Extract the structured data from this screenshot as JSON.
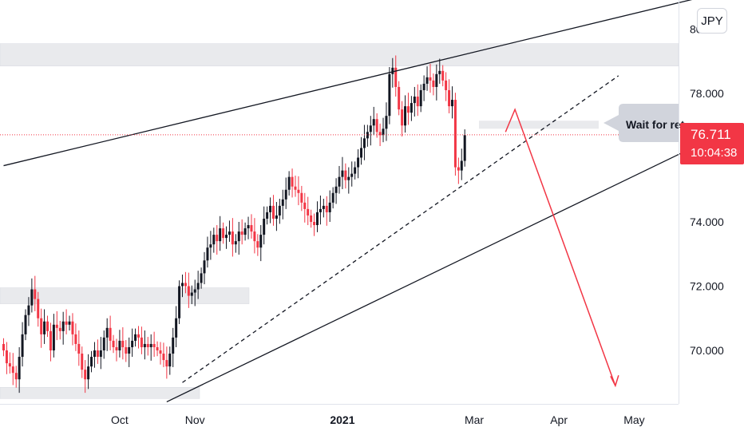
{
  "header": {
    "currency": "JPY"
  },
  "price_tag": {
    "price": "76.711",
    "countdown": "10:04:38"
  },
  "annotation": {
    "text": "Wait for ret"
  },
  "colors": {
    "up": "#131722",
    "down": "#f23645",
    "zone": "#e9eaed",
    "arrow": "#f23645",
    "grid": "#ffffff"
  },
  "chart_data": {
    "type": "candlestick",
    "symbol_currency": "JPY",
    "yaxis": {
      "ticks": [
        "80.000",
        "78.000",
        "76.000",
        "74.000",
        "72.000",
        "70.000"
      ],
      "tick_values": [
        80,
        78,
        76,
        74,
        72,
        70
      ],
      "range": [
        68.4,
        80.5
      ]
    },
    "xaxis": {
      "labels": [
        {
          "text": "Oct",
          "index": 37
        },
        {
          "text": "Nov",
          "index": 61
        },
        {
          "text": "2021",
          "index": 108
        },
        {
          "text": "Mar",
          "index": 150
        },
        {
          "text": "Apr",
          "index": 177
        },
        {
          "text": "May",
          "index": 201
        }
      ]
    },
    "last_price": 76.711,
    "candles_close": [
      70.0,
      69.6,
      69.5,
      69.3,
      69.1,
      69.8,
      70.5,
      71.1,
      71.4,
      71.9,
      71.6,
      71.0,
      70.5,
      70.9,
      70.6,
      70.0,
      70.8,
      70.7,
      70.6,
      70.9,
      70.8,
      70.9,
      70.5,
      70.2,
      69.9,
      69.4,
      69.1,
      69.5,
      69.8,
      70.0,
      69.8,
      70.0,
      70.4,
      70.7,
      70.3,
      70.1,
      70.0,
      70.3,
      70.1,
      69.9,
      70.1,
      70.3,
      70.5,
      70.4,
      70.1,
      70.2,
      70.1,
      70.2,
      70.1,
      70.0,
      69.9,
      69.7,
      69.5,
      69.9,
      70.4,
      71.0,
      72.0,
      72.1,
      72.0,
      71.7,
      71.8,
      71.9,
      72.1,
      72.4,
      72.8,
      73.2,
      73.3,
      73.6,
      73.4,
      73.8,
      73.5,
      73.6,
      73.7,
      73.3,
      73.4,
      73.7,
      73.6,
      73.8,
      73.9,
      73.7,
      73.4,
      73.2,
      73.6,
      74.1,
      74.3,
      74.5,
      74.1,
      74.2,
      74.5,
      74.7,
      75.0,
      75.4,
      75.1,
      75.0,
      74.9,
      74.6,
      74.4,
      74.2,
      74.0,
      73.9,
      74.3,
      74.4,
      74.5,
      74.3,
      74.6,
      74.9,
      75.1,
      75.4,
      75.6,
      75.3,
      75.4,
      75.5,
      75.7,
      76.0,
      76.3,
      76.6,
      76.8,
      77.0,
      77.2,
      76.8,
      76.7,
      76.9,
      77.3,
      78.6,
      78.8,
      78.2,
      77.5,
      77.0,
      77.6,
      77.4,
      77.7,
      77.9,
      77.6,
      78.1,
      78.3,
      78.5,
      78.4,
      78.2,
      78.6,
      78.7,
      78.4,
      78.1,
      77.6,
      77.8,
      75.7,
      75.6,
      75.9,
      76.7
    ],
    "levels": {
      "support_zones": [
        [
          78.85,
          79.55
        ],
        [
          71.45,
          71.95
        ],
        [
          68.5,
          68.85
        ]
      ],
      "retest_zone": [
        76.9,
        77.15
      ]
    },
    "channel_lines": {
      "upper": {
        "start_index": 0,
        "end_index": 227,
        "start": 75.75,
        "end": 81.1
      },
      "lower": {
        "start_index": 52,
        "end_index": 230,
        "start": 68.4,
        "end": 76.8
      },
      "dashed": {
        "start_index": 57,
        "end_index": 196,
        "start": 69.0,
        "end": 78.55
      }
    },
    "forecast_arrow": {
      "points": [
        [
          160,
          76.8
        ],
        [
          163,
          77.5
        ],
        [
          195,
          68.9
        ]
      ]
    }
  }
}
